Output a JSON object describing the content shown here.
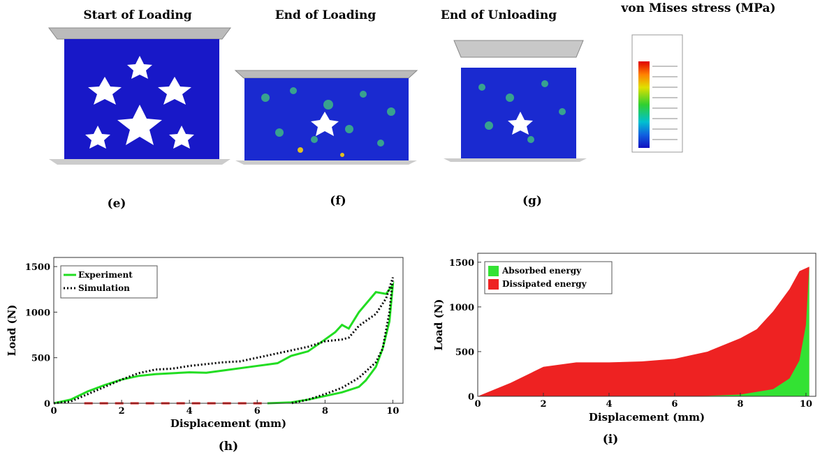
{
  "panels": [
    {
      "title": "Start of Loading",
      "label": "(e)"
    },
    {
      "title": "End of Loading",
      "label": "(f)"
    },
    {
      "title": "End of Unloading",
      "label": "(g)"
    },
    {
      "title": "von Mises stress (MPa)"
    }
  ],
  "chart_data": [
    {
      "type": "line",
      "label": "(h)",
      "x_label": "Displacement (mm)",
      "y_label": "Load (N)",
      "xlim": [
        0,
        10.3
      ],
      "ylim": [
        0,
        1600
      ],
      "xticks": [
        0,
        2,
        4,
        6,
        8,
        10
      ],
      "yticks": [
        0,
        500,
        1000,
        1500
      ],
      "legend": "upper left",
      "series": [
        {
          "name": "Experiment",
          "color": "#22dd22",
          "dash": "solid",
          "x": [
            0,
            0.5,
            1,
            1.5,
            2,
            2.5,
            3,
            4,
            4.5,
            5,
            6,
            6.6,
            7,
            7.5,
            8,
            8.3,
            8.5,
            8.7,
            9,
            9.5,
            9.8,
            10,
            9.9,
            9.7,
            9.5,
            9.2,
            9,
            8.5,
            8,
            7.5,
            7,
            6.3
          ],
          "values": [
            0,
            40,
            130,
            200,
            260,
            300,
            320,
            340,
            335,
            360,
            410,
            440,
            520,
            570,
            700,
            780,
            860,
            820,
            1000,
            1220,
            1200,
            1300,
            900,
            600,
            400,
            250,
            180,
            120,
            80,
            40,
            10,
            0
          ]
        },
        {
          "name": "Simulation",
          "color": "#000000",
          "dash": "dotted",
          "x": [
            0,
            0.5,
            1,
            1.5,
            2,
            2.5,
            3,
            3.5,
            4,
            5,
            5.5,
            6,
            7,
            7.5,
            8,
            8.5,
            8.7,
            9,
            9.5,
            9.8,
            10,
            9.9,
            9.7,
            9.5,
            9,
            8.5,
            8,
            7.5,
            7
          ],
          "values": [
            0,
            20,
            100,
            180,
            260,
            330,
            370,
            380,
            410,
            450,
            460,
            500,
            580,
            620,
            680,
            700,
            720,
            850,
            980,
            1150,
            1380,
            1000,
            600,
            450,
            280,
            170,
            100,
            40,
            0
          ]
        },
        {
          "color": "#ee1111",
          "dash": "dashed",
          "x": [
            0.9,
            6.3
          ],
          "values": [
            0,
            0
          ]
        }
      ]
    },
    {
      "type": "area",
      "label": "(i)",
      "x_label": "Displacement (mm)",
      "y_label": "Load (N)",
      "xlim": [
        0,
        10.3
      ],
      "ylim": [
        0,
        1600
      ],
      "xticks": [
        0,
        2,
        4,
        6,
        8,
        10
      ],
      "yticks": [
        0,
        500,
        1000,
        1500
      ],
      "legend": "upper left",
      "series": [
        {
          "name": "Absorbed energy",
          "color": "#33e233",
          "x": [
            6,
            7,
            8,
            9,
            9.5,
            9.8,
            10,
            10.1
          ],
          "values": [
            0,
            5,
            20,
            80,
            200,
            400,
            800,
            1450
          ]
        },
        {
          "name": "Dissipated energy",
          "color": "#ee2222",
          "x": [
            0,
            1,
            2,
            3,
            4,
            5,
            6,
            7,
            8,
            8.5,
            9,
            9.5,
            9.8,
            10.1
          ],
          "values": [
            0,
            150,
            330,
            380,
            380,
            390,
            420,
            500,
            650,
            750,
            950,
            1200,
            1400,
            1450
          ]
        }
      ]
    }
  ]
}
